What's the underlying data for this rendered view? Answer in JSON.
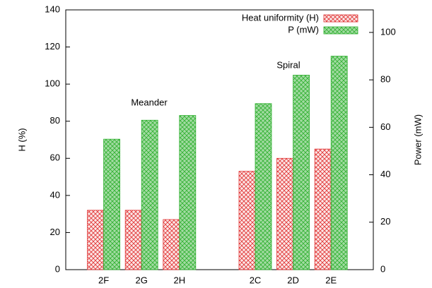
{
  "chart_data": {
    "type": "bar",
    "categories": [
      "2F",
      "2G",
      "2H",
      null,
      "2C",
      "2D",
      "2E"
    ],
    "series": [
      {
        "name": "Heat uniformity (H)",
        "color": "#e03030",
        "values": [
          32,
          32,
          27,
          null,
          53,
          60,
          65
        ]
      },
      {
        "name": "P (mW)",
        "color": "#30b030",
        "axis": "y2",
        "values": [
          55,
          63,
          65,
          null,
          70,
          82,
          90
        ]
      }
    ],
    "ylabel": "H (%)",
    "y2label": "Power (mW)",
    "ylim": [
      0,
      140
    ],
    "yticks": [
      0,
      20,
      40,
      60,
      80,
      100,
      120,
      140
    ],
    "y2lim": [
      0,
      109.5
    ],
    "y2ticks": [
      0,
      20,
      40,
      60,
      80,
      100
    ],
    "annotations": [
      "Meander",
      "Spiral"
    ],
    "legend": "top-right",
    "grid": false
  }
}
